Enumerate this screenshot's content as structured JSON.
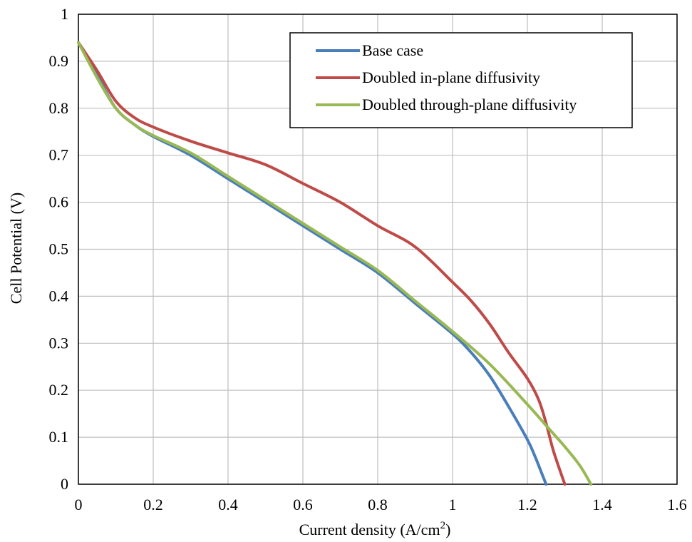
{
  "chart_data": {
    "type": "line",
    "xlabel": "Current density (A/cm",
    "xlabel_sup": "2",
    "xlabel_end": ")",
    "ylabel": "Cell Potential (V)",
    "xlim": [
      0,
      1.6
    ],
    "ylim": [
      0,
      1
    ],
    "xticks": [
      "0",
      "0.2",
      "0.4",
      "0.6",
      "0.8",
      "1",
      "1.2",
      "1.4",
      "1.6"
    ],
    "yticks": [
      "0",
      "0.1",
      "0.2",
      "0.3",
      "0.4",
      "0.5",
      "0.6",
      "0.7",
      "0.8",
      "0.9",
      "1"
    ],
    "grid": true,
    "legend_position": "top-right",
    "series": [
      {
        "name": "Base case",
        "color": "#4a7ebb",
        "points": [
          [
            0,
            0.94
          ],
          [
            0.05,
            0.87
          ],
          [
            0.1,
            0.8
          ],
          [
            0.15,
            0.765
          ],
          [
            0.2,
            0.74
          ],
          [
            0.3,
            0.7
          ],
          [
            0.4,
            0.65
          ],
          [
            0.5,
            0.6
          ],
          [
            0.6,
            0.55
          ],
          [
            0.7,
            0.5
          ],
          [
            0.8,
            0.45
          ],
          [
            0.9,
            0.385
          ],
          [
            1.0,
            0.32
          ],
          [
            1.05,
            0.28
          ],
          [
            1.1,
            0.23
          ],
          [
            1.15,
            0.165
          ],
          [
            1.2,
            0.095
          ],
          [
            1.22,
            0.06
          ],
          [
            1.24,
            0.02
          ],
          [
            1.25,
            0
          ]
        ]
      },
      {
        "name": "Doubled in-plane diffusivity",
        "color": "#be4b48",
        "points": [
          [
            0,
            0.94
          ],
          [
            0.05,
            0.88
          ],
          [
            0.1,
            0.815
          ],
          [
            0.15,
            0.78
          ],
          [
            0.2,
            0.76
          ],
          [
            0.3,
            0.73
          ],
          [
            0.4,
            0.705
          ],
          [
            0.5,
            0.68
          ],
          [
            0.6,
            0.64
          ],
          [
            0.7,
            0.6
          ],
          [
            0.8,
            0.55
          ],
          [
            0.9,
            0.505
          ],
          [
            1.0,
            0.43
          ],
          [
            1.05,
            0.39
          ],
          [
            1.1,
            0.34
          ],
          [
            1.15,
            0.28
          ],
          [
            1.2,
            0.225
          ],
          [
            1.23,
            0.18
          ],
          [
            1.25,
            0.13
          ],
          [
            1.27,
            0.07
          ],
          [
            1.3,
            0
          ]
        ]
      },
      {
        "name": "Doubled through-plane diffusivity",
        "color": "#98b954",
        "points": [
          [
            0,
            0.94
          ],
          [
            0.05,
            0.865
          ],
          [
            0.1,
            0.8
          ],
          [
            0.15,
            0.765
          ],
          [
            0.2,
            0.742
          ],
          [
            0.3,
            0.705
          ],
          [
            0.4,
            0.655
          ],
          [
            0.5,
            0.605
          ],
          [
            0.6,
            0.555
          ],
          [
            0.7,
            0.505
          ],
          [
            0.8,
            0.455
          ],
          [
            0.9,
            0.39
          ],
          [
            1.0,
            0.325
          ],
          [
            1.1,
            0.255
          ],
          [
            1.2,
            0.17
          ],
          [
            1.25,
            0.125
          ],
          [
            1.3,
            0.08
          ],
          [
            1.34,
            0.04
          ],
          [
            1.37,
            0
          ]
        ]
      }
    ]
  }
}
